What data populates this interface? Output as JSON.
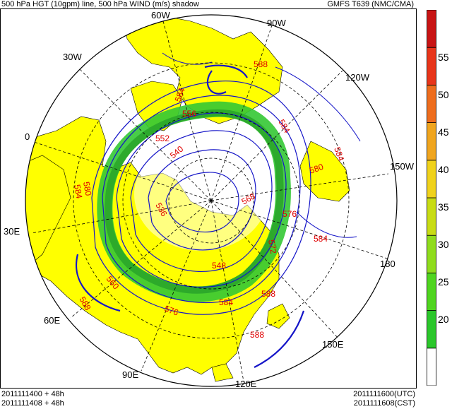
{
  "header": {
    "title_left": "500 hPa HGT (10gpm) line, 500 hPa WIND (m/s) shadow",
    "title_right": "GMFS T639 (NMC/CMA)"
  },
  "footer": {
    "init_utc": "2011111400 + 48h",
    "init_cst": "2011111408 + 48h",
    "valid_utc": "2011111600(UTC)",
    "valid_cst": "2011111608(CST)"
  },
  "map": {
    "projection": "north-polar-stereographic",
    "longitude_labels": [
      "60W",
      "90W",
      "30W",
      "120W",
      "0",
      "150W",
      "30E",
      "180",
      "60E",
      "150E",
      "90E",
      "120E"
    ],
    "contour_labels": [
      "584",
      "588",
      "584",
      "584",
      "580",
      "576",
      "584",
      "588",
      "588",
      "588",
      "584",
      "580",
      "576",
      "584",
      "540",
      "552",
      "556",
      "568",
      "536",
      "548",
      "560",
      "572"
    ],
    "colors": {
      "land": "#ffff00",
      "height_contour": "#1515c8",
      "contour_label": "#e00000",
      "wind_shade": "#34c834"
    }
  },
  "colorbar": {
    "ticks": [
      "55",
      "50",
      "45",
      "40",
      "35",
      "30",
      "25",
      "20"
    ],
    "colors": [
      "#ffffff",
      "#2bc72b",
      "#4fd51f",
      "#8fdc1c",
      "#c8dc14",
      "#f0d21b",
      "#f0a51e",
      "#ee6d1d",
      "#e8351a",
      "#c81414"
    ]
  }
}
